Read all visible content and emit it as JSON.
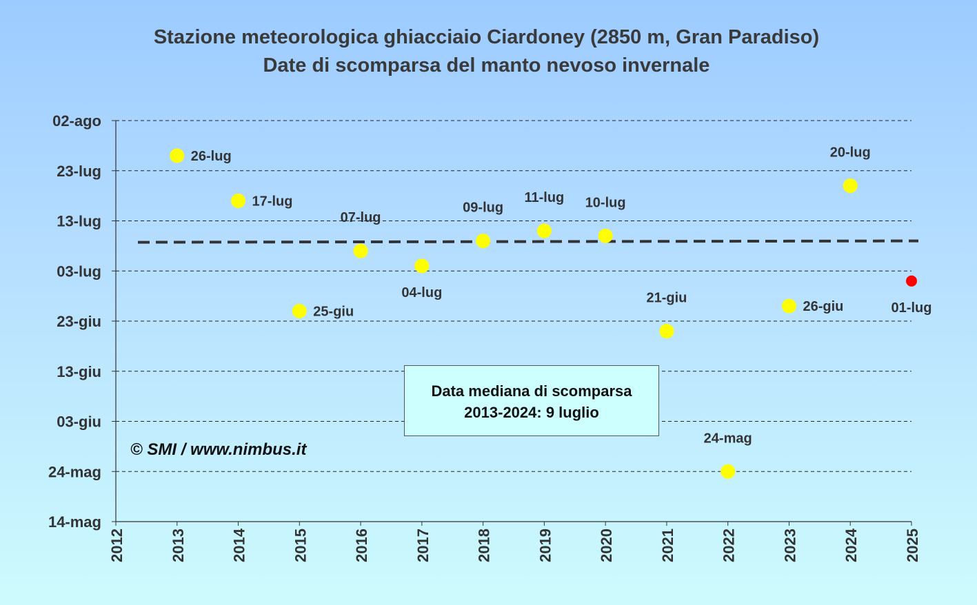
{
  "chart_data": {
    "type": "scatter",
    "title": "Stazione meteorologica ghiacciaio Ciardoney (2850 m, Gran Paradiso)",
    "subtitle": "Date di scomparsa del manto nevoso invernale",
    "x_ticks": [
      "2012",
      "2013",
      "2014",
      "2015",
      "2016",
      "2017",
      "2018",
      "2019",
      "2020",
      "2021",
      "2022",
      "2023",
      "2024",
      "2025"
    ],
    "xlim": [
      2012,
      2025
    ],
    "ylim": [
      "2025-05-14",
      "2025-08-02"
    ],
    "y_ticks": [
      {
        "label": "02-ago",
        "date": "2025-08-02"
      },
      {
        "label": "23-lug",
        "date": "2025-07-23"
      },
      {
        "label": "13-lug",
        "date": "2025-07-13"
      },
      {
        "label": "03-lug",
        "date": "2025-07-03"
      },
      {
        "label": "23-giu",
        "date": "2025-06-23"
      },
      {
        "label": "13-giu",
        "date": "2025-06-13"
      },
      {
        "label": "03-giu",
        "date": "2025-06-03"
      },
      {
        "label": "24-mag",
        "date": "2025-05-24"
      },
      {
        "label": "14-mag",
        "date": "2025-05-14"
      }
    ],
    "grid": "horizontal dashed",
    "points": [
      {
        "x": 2013,
        "date": "2025-07-26",
        "label": "26-lug",
        "color": "#ffff00",
        "label_pos": "right"
      },
      {
        "x": 2014,
        "date": "2025-07-17",
        "label": "17-lug",
        "color": "#ffff00",
        "label_pos": "right"
      },
      {
        "x": 2015,
        "date": "2025-06-25",
        "label": "25-giu",
        "color": "#ffff00",
        "label_pos": "right"
      },
      {
        "x": 2016,
        "date": "2025-07-07",
        "label": "07-lug",
        "color": "#ffff00",
        "label_pos": "above"
      },
      {
        "x": 2017,
        "date": "2025-07-04",
        "label": "04-lug",
        "color": "#ffff00",
        "label_pos": "below"
      },
      {
        "x": 2018,
        "date": "2025-07-09",
        "label": "09-lug",
        "color": "#ffff00",
        "label_pos": "above"
      },
      {
        "x": 2019,
        "date": "2025-07-11",
        "label": "11-lug",
        "color": "#ffff00",
        "label_pos": "above"
      },
      {
        "x": 2020,
        "date": "2025-07-10",
        "label": "10-lug",
        "color": "#ffff00",
        "label_pos": "above"
      },
      {
        "x": 2021,
        "date": "2025-06-21",
        "label": "21-giu",
        "color": "#ffff00",
        "label_pos": "above"
      },
      {
        "x": 2022,
        "date": "2025-05-24",
        "label": "24-mag",
        "color": "#ffff00",
        "label_pos": "above"
      },
      {
        "x": 2023,
        "date": "2025-06-26",
        "label": "26-giu",
        "color": "#ffff00",
        "label_pos": "right"
      },
      {
        "x": 2024,
        "date": "2025-07-20",
        "label": "20-lug",
        "color": "#ffff00",
        "label_pos": "above"
      },
      {
        "x": 2025,
        "date": "2025-07-01",
        "label": "01-lug",
        "color": "#ff0000",
        "label_pos": "below"
      }
    ],
    "median": {
      "date": "2025-07-09",
      "style": "dashed"
    },
    "annotation": [
      "Data mediana di scomparsa",
      "2013-2024: 9 luglio"
    ],
    "credit": "© SMI / www.nimbus.it"
  }
}
